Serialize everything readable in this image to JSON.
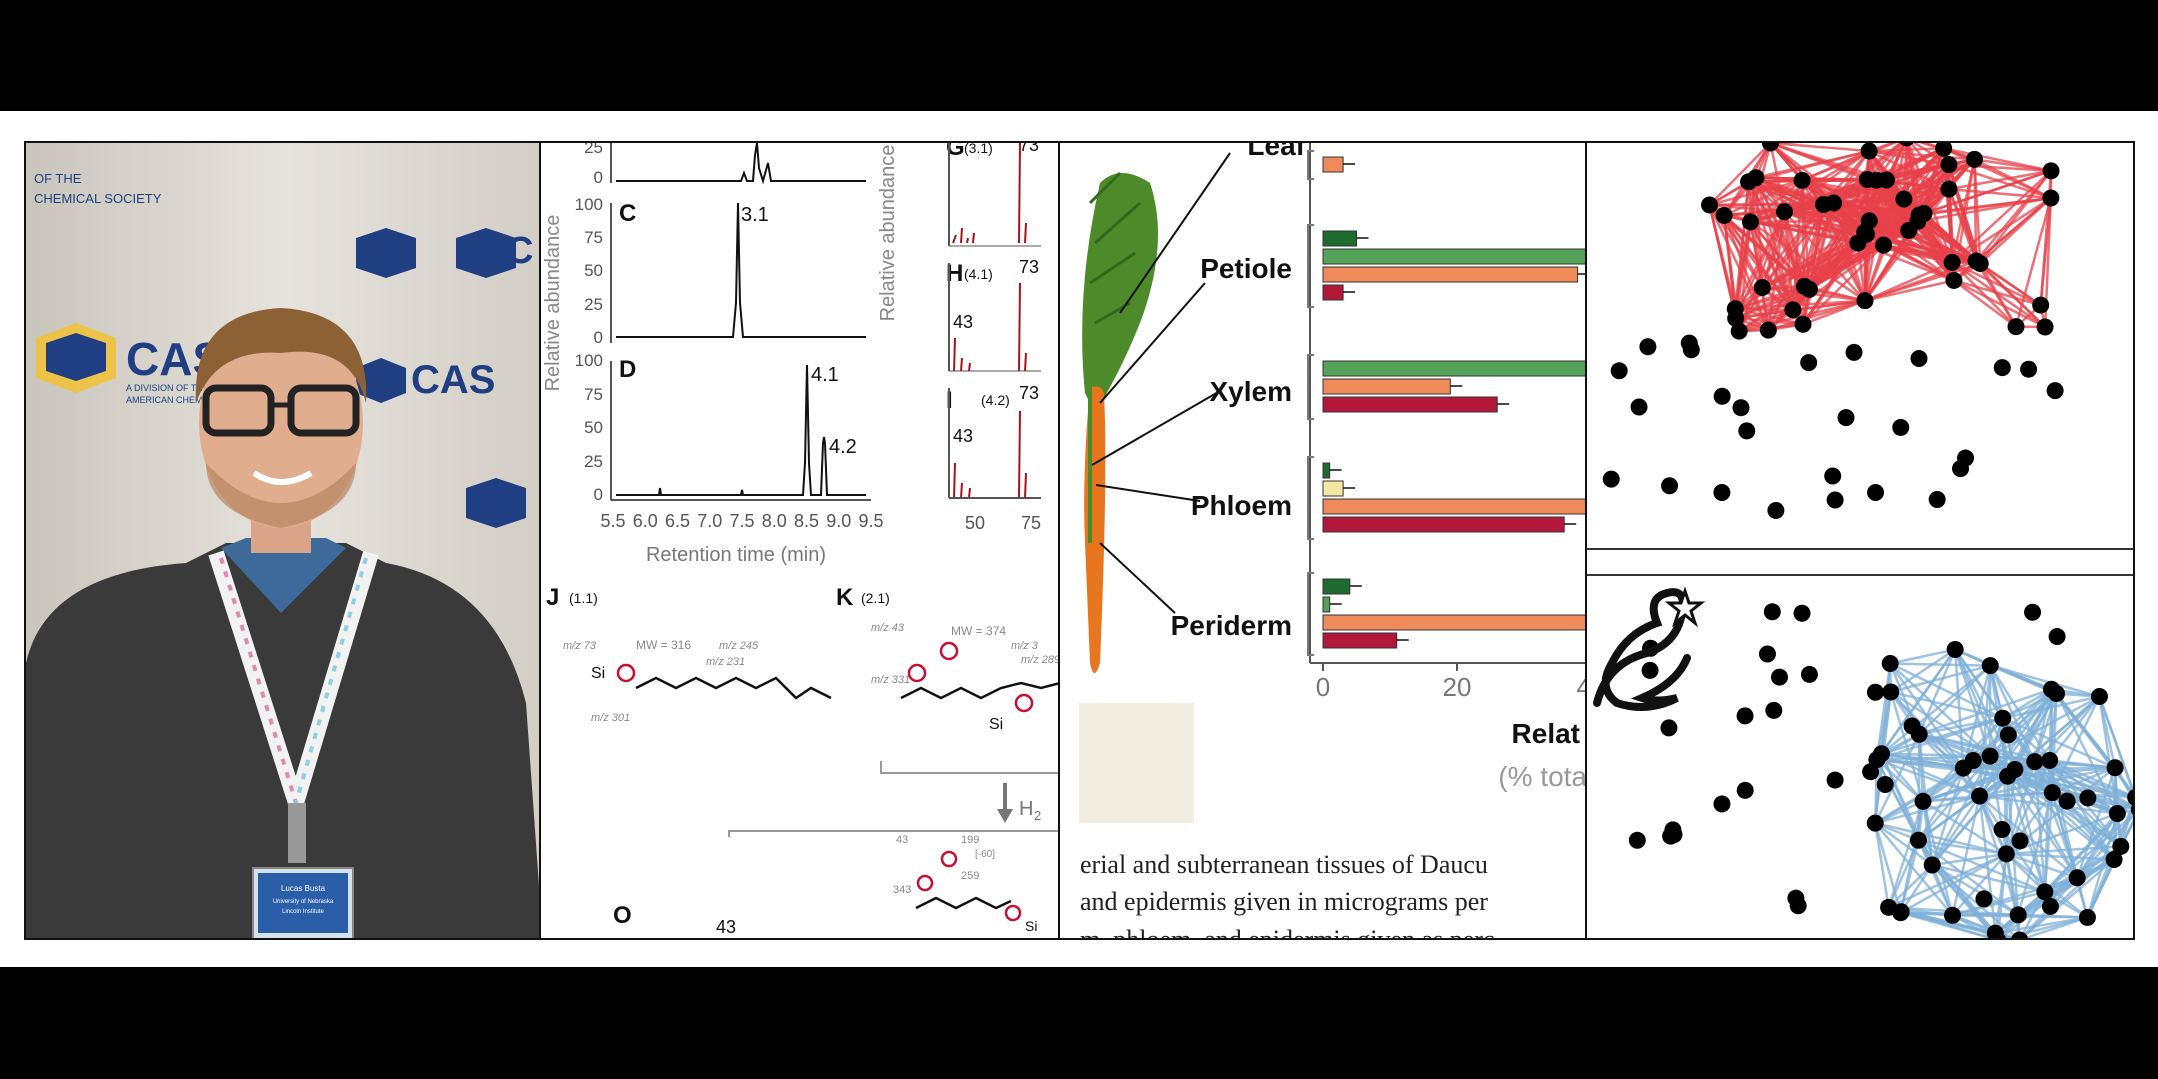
{
  "photo": {
    "backdrop_wordmark": "CAS",
    "backdrop_lines": [
      "OF THE",
      "CHEMICAL SOCIETY",
      "A DIVISION OF THE",
      "AMERICAN CHEMICAL SOCIETY"
    ],
    "badge_name": "Lucas Busta",
    "badge_lines": [
      "University of Nebraska",
      "Lincoln Institute"
    ]
  },
  "chromatogram": {
    "y_label": "Relative abundance",
    "x_label": "Retention time (min)",
    "x_ticks": [
      "5.5",
      "6.0",
      "6.5",
      "7.0",
      "7.5",
      "8.0",
      "8.5",
      "9.0",
      "9.5"
    ],
    "y_ticks": [
      "100",
      "75",
      "50",
      "25",
      "0"
    ],
    "top_ticks": [
      "25",
      "0"
    ],
    "panel_c": "C",
    "peak_c": "3.1",
    "panel_d": "D",
    "peak_d1": "4.1",
    "peak_d2": "4.2",
    "panel_g": "G",
    "g_sub": "(3.1)",
    "g_peak": "73",
    "panel_h": "H",
    "h_sub": "(4.1)",
    "h_peak1": "73",
    "h_peak2": "43",
    "panel_i": "I",
    "i_sub": "(4.2)",
    "i_peak1": "73",
    "i_peak2": "43",
    "ms_x_ticks": [
      "50",
      "75"
    ],
    "panel_j": "J",
    "j_sub": "(1.1)",
    "panel_k": "K",
    "k_sub": "(2.1)",
    "panel_o": "O",
    "o_num": "43",
    "j_mw": "MW = 316",
    "j_frag1": "m/z 73",
    "j_frag2": "m/z 245",
    "j_frag3": "m/z 231",
    "j_frag4": "m/z 301",
    "k_mw": "MW = 374",
    "k_frag1": "m/z 43",
    "k_frag2": "m/z 3",
    "k_frag3": "m/z 289",
    "k_frag4": "m/z 331",
    "h2": "H",
    "h2_sub": "2",
    "l_nums": [
      "43",
      "199",
      "[-60]",
      "259",
      "343"
    ]
  },
  "carrot": {
    "tissues": [
      "Leaf",
      "Petiole",
      "Xylem",
      "Phloem",
      "Periderm"
    ],
    "x_ticks": [
      "0",
      "20",
      "40"
    ],
    "x_label": "Relat",
    "x_sub": "(% tota",
    "caption_lines": [
      "erial and subterranean tissues of Daucu",
      "and epidermis given in micrograms per",
      "m, phloem, and epidermis given as perc"
    ],
    "colors": {
      "green": "#55a35a",
      "orange": "#ef8a5a",
      "red": "#b3183a",
      "cream": "#f4e7a6",
      "darkgreen": "#1d6b2e"
    },
    "bars": [
      {
        "tissue": "Leaf",
        "values": [
          3
        ]
      },
      {
        "tissue": "Petiole",
        "values": [
          5,
          42,
          38,
          3
        ]
      },
      {
        "tissue": "Xylem",
        "values": [
          42,
          19,
          26
        ]
      },
      {
        "tissue": "Phloem",
        "values": [
          1,
          3,
          42,
          36
        ]
      },
      {
        "tissue": "Periderm",
        "values": [
          4,
          1,
          42,
          11
        ]
      }
    ]
  },
  "network": {
    "top_color": "#e8414a",
    "bottom_color": "#7fb0d8"
  }
}
